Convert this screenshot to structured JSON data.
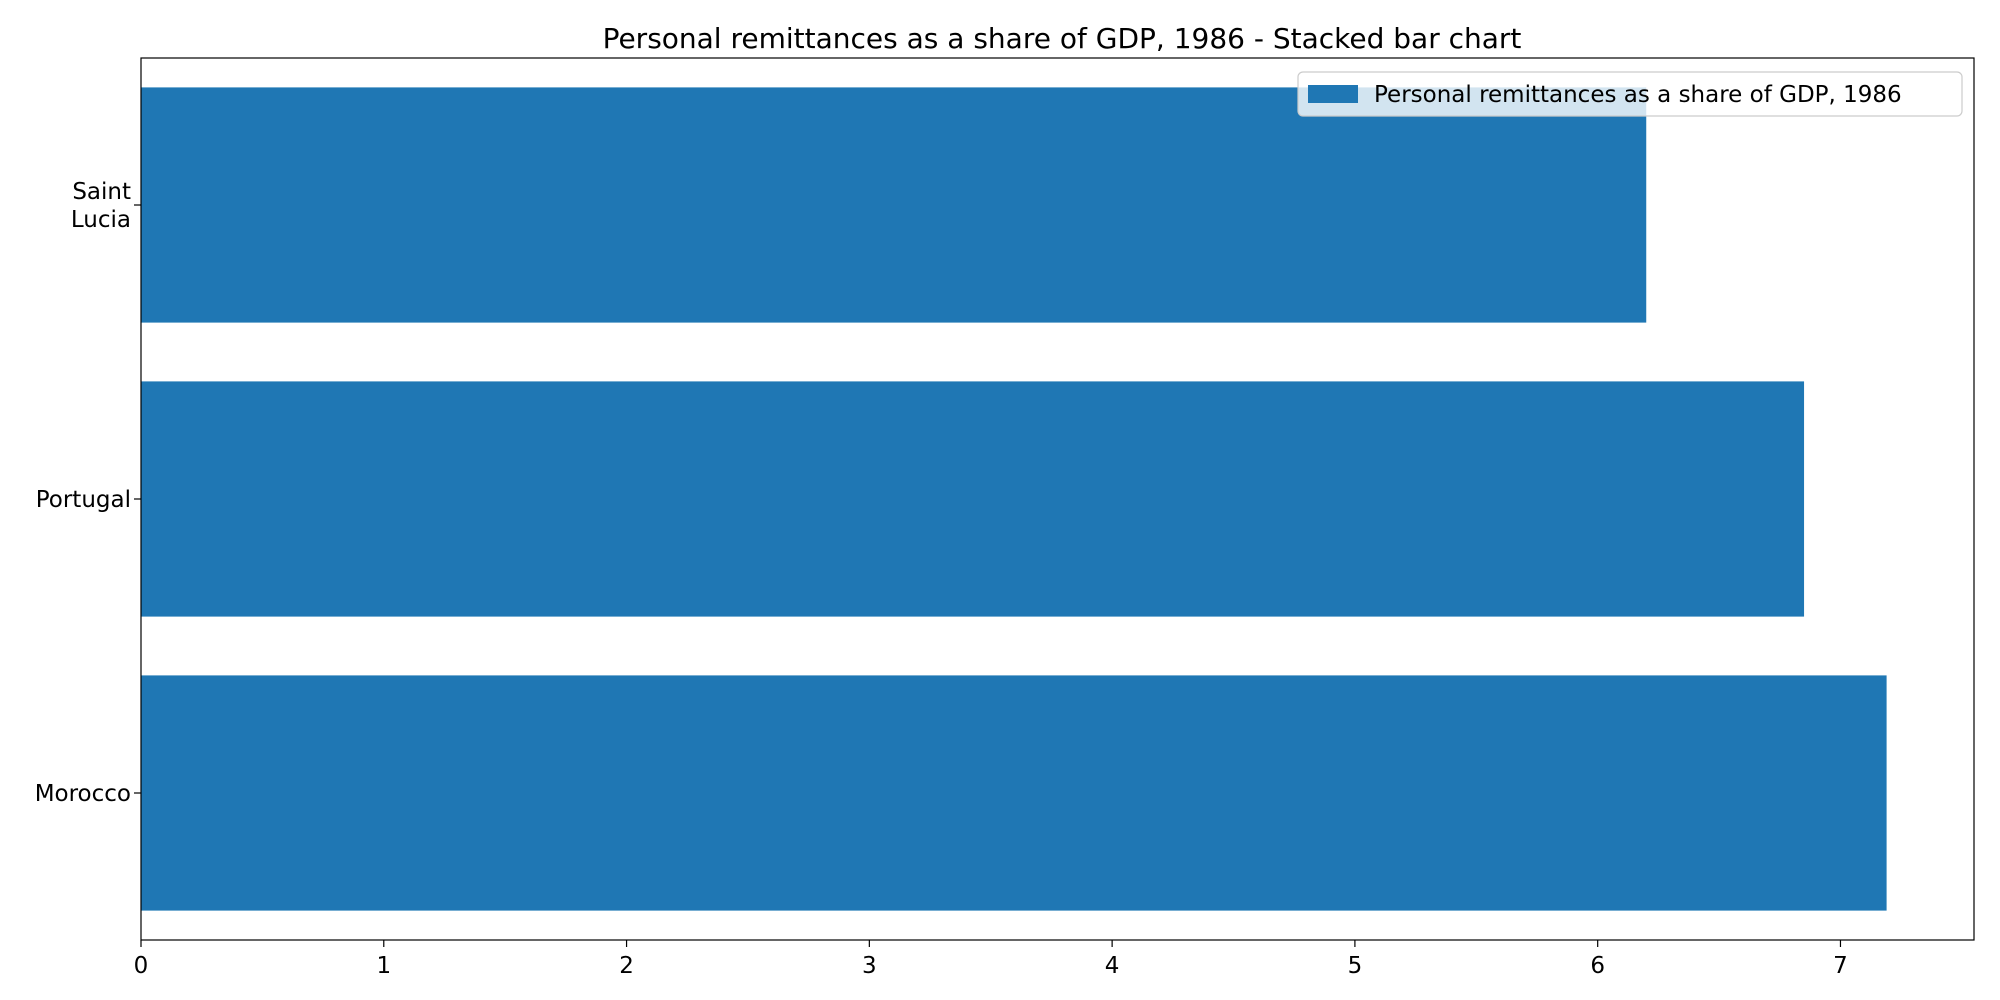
{
  "chart_data": {
    "type": "bar",
    "orientation": "horizontal",
    "title": "Personal remittances as a share of GDP, 1986 - Stacked bar chart",
    "xlabel": "",
    "ylabel": "",
    "categories": [
      "Morocco",
      "Portugal",
      "Saint Lucia"
    ],
    "category_label_lines": [
      [
        "Morocco"
      ],
      [
        "Portugal"
      ],
      [
        "Saint",
        "Lucia"
      ]
    ],
    "series": [
      {
        "name": "Personal remittances as a share of GDP, 1986",
        "values": [
          7.19,
          6.85,
          6.2
        ],
        "color": "#1f77b4"
      }
    ],
    "xlim": [
      0,
      7.55
    ],
    "xticks": [
      0,
      1,
      2,
      3,
      4,
      5,
      6,
      7
    ],
    "grid": false,
    "legend_position": "top-right"
  }
}
